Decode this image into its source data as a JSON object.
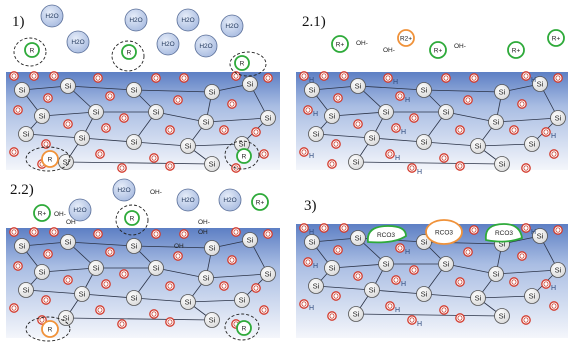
{
  "panels": [
    {
      "label": "1)",
      "species": [
        "H2O",
        "H2O",
        "H2O",
        "H2O",
        "H2O",
        "H2O",
        "H2O",
        "R",
        "R",
        "R",
        "R",
        "R"
      ]
    },
    {
      "label": "2.1)",
      "species": [
        "R+",
        "OH-",
        "R2+",
        "OH-",
        "R+",
        "OH-",
        "R+",
        "R+"
      ]
    },
    {
      "label": "2.2)",
      "species": [
        "R+",
        "OH-",
        "H2O",
        "H2O",
        "OH-",
        "H2O",
        "H2O",
        "R+",
        "OH-",
        "R",
        "R",
        "R"
      ]
    },
    {
      "label": "3)",
      "species": [
        "RCO3",
        "RCO3",
        "RCO3"
      ]
    }
  ],
  "glass_atoms": {
    "si": "Si",
    "o": "O",
    "h": "H",
    "oh": "OH"
  },
  "colors": {
    "glass_top": "#5d7fc4",
    "glass_bottom": "#eef2fa",
    "oxygen": "#d33a2c",
    "silicon": "#555555",
    "alkali_ring": "#2eaa3a",
    "alkaline_earth_ring": "#f0923a",
    "water": "#b8c7e6"
  }
}
